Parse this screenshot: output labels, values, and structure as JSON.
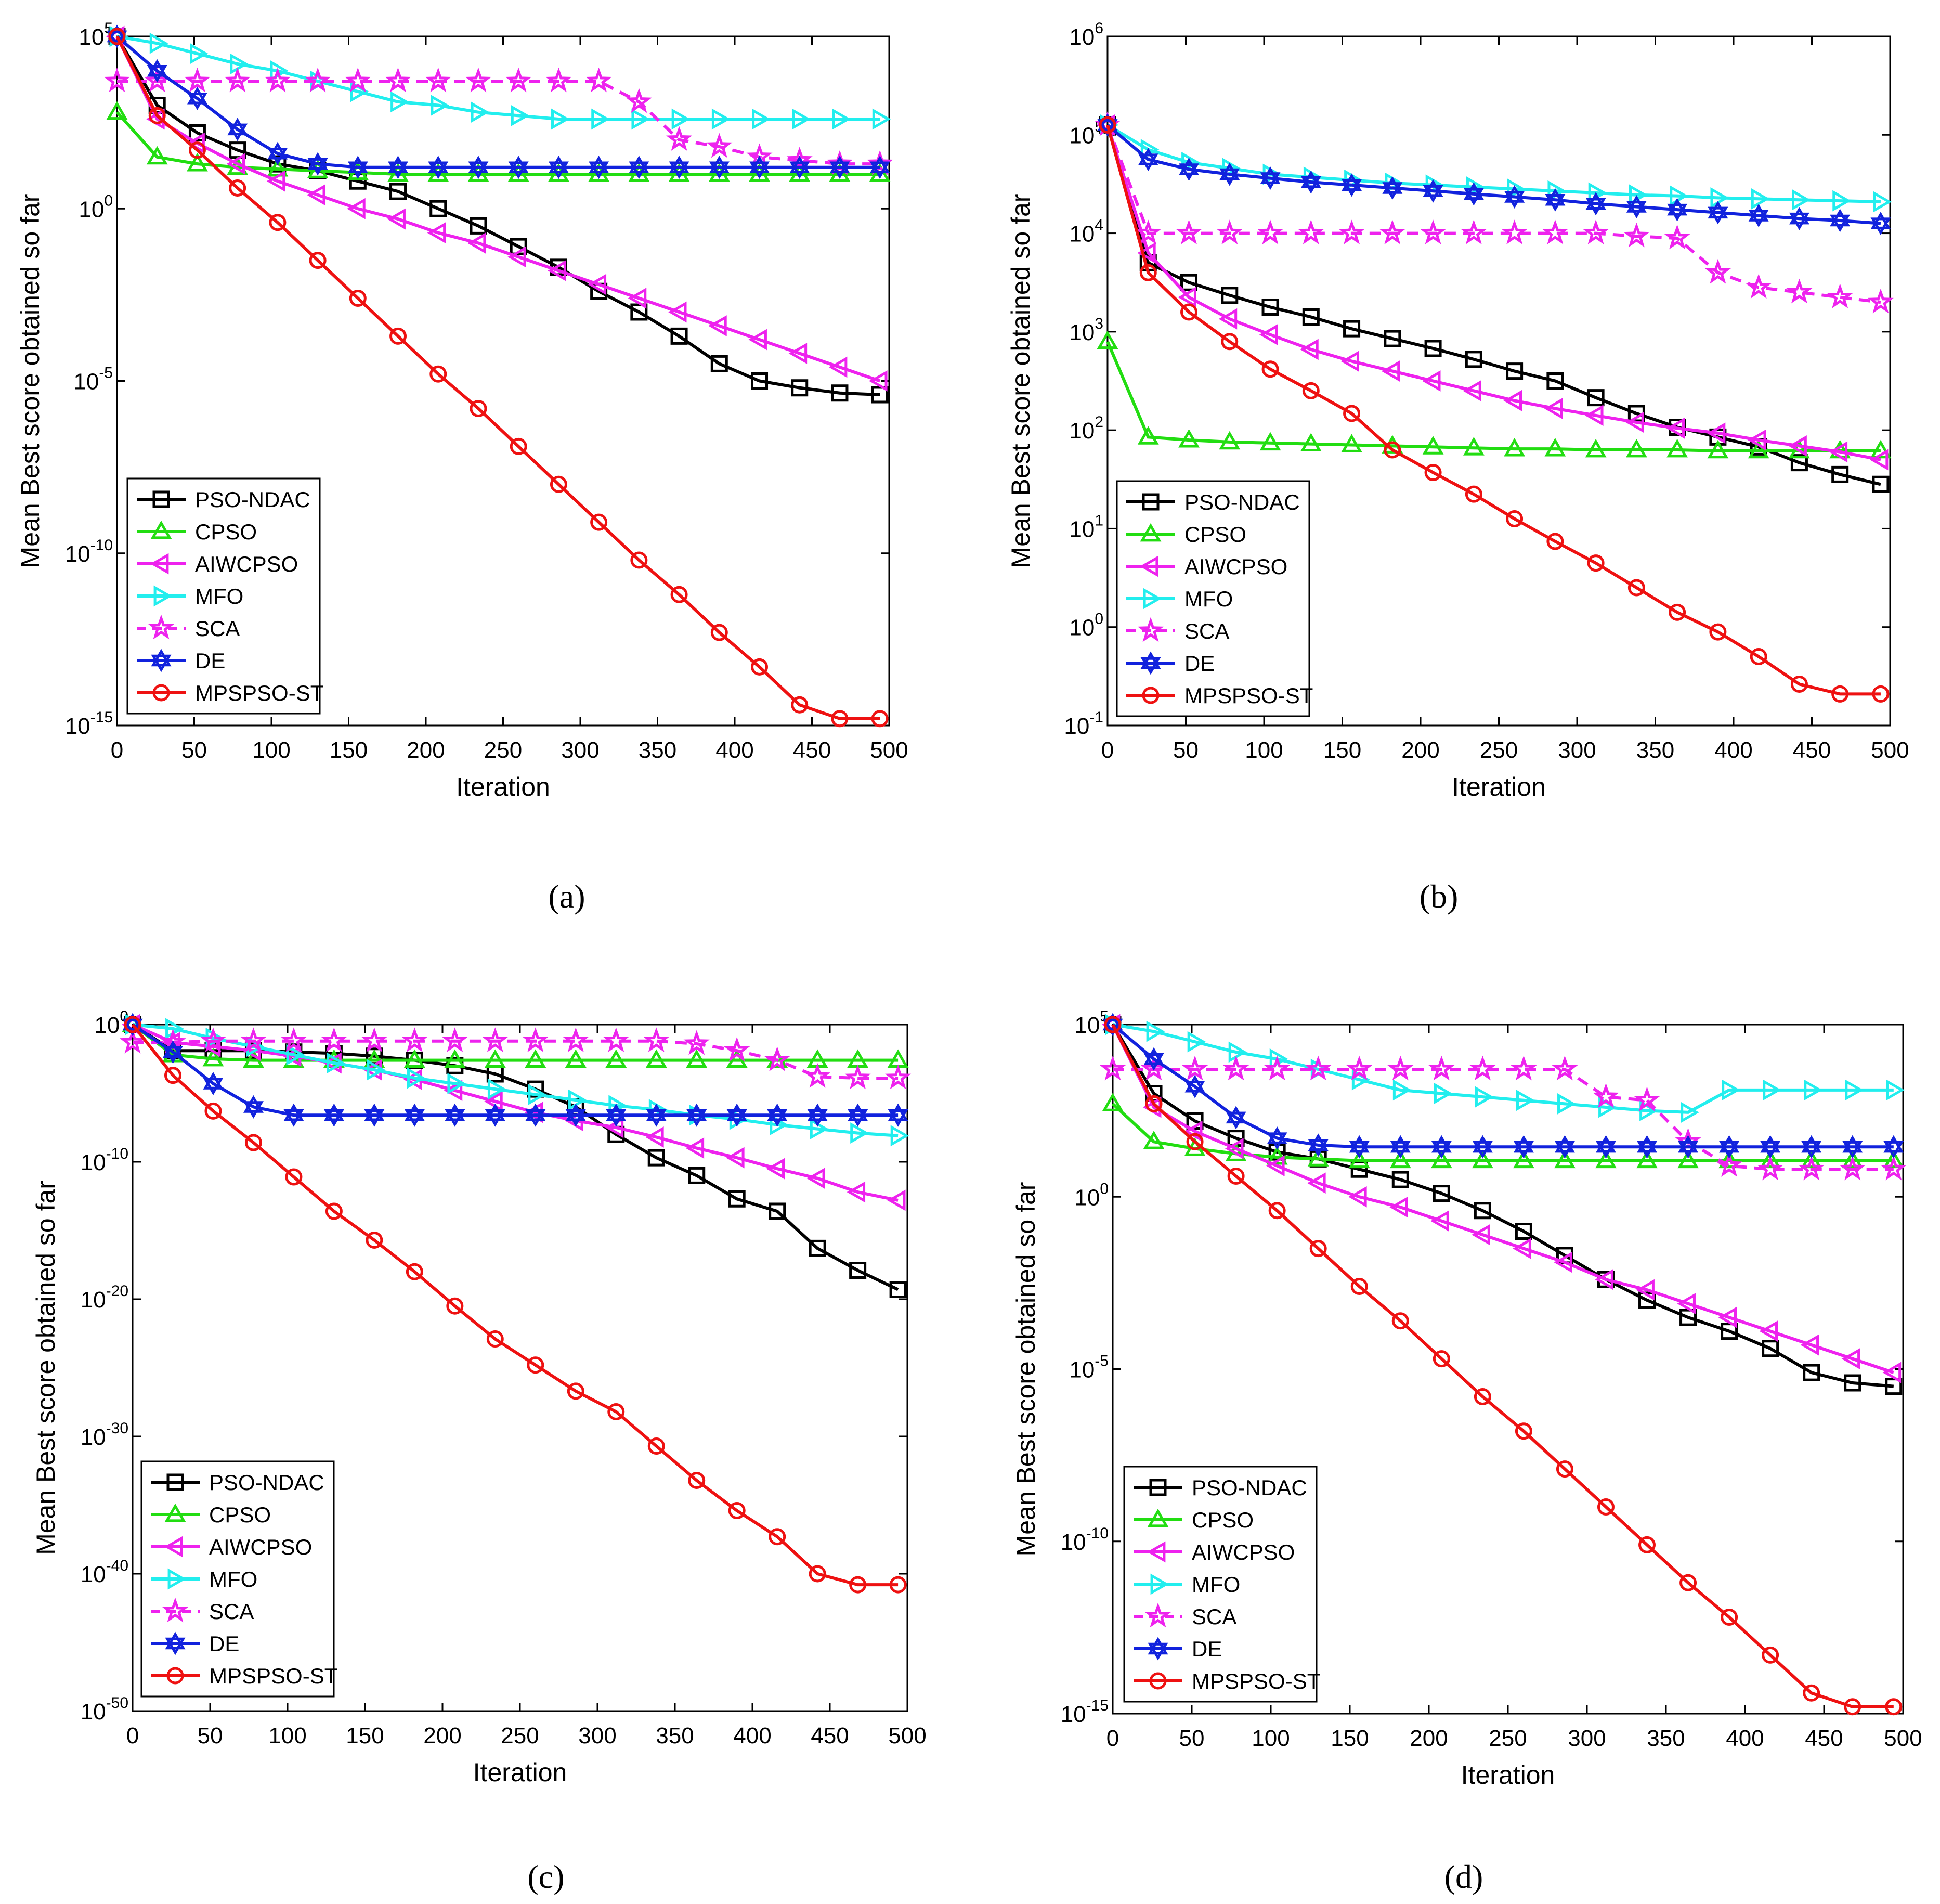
{
  "figure": {
    "panel_labels": [
      "(a)",
      "(b)",
      "(c)",
      "(d)"
    ]
  },
  "colors": {
    "PSO-NDAC": "#000000",
    "CPSO": "#22dd11",
    "AIWCPSO": "#ee22ee",
    "MFO": "#22eeee",
    "SCA": "#ee22ee",
    "DE": "#1122dd",
    "MPSPSO-ST": "#ee1111"
  },
  "chart_data": [
    {
      "type": "line",
      "panel": "(a)",
      "xlabel": "Iteration",
      "ylabel": "Mean Best score obtained so far",
      "xlim": [
        0,
        500
      ],
      "xticks": [
        0,
        50,
        100,
        150,
        200,
        250,
        300,
        350,
        400,
        450,
        500
      ],
      "ylim_exp": [
        -15,
        5
      ],
      "yticks_exp": [
        5,
        0,
        -5,
        -10,
        -15
      ],
      "legend_position": "bottom-left",
      "x": [
        0,
        26,
        52,
        78,
        104,
        130,
        156,
        182,
        208,
        234,
        260,
        286,
        312,
        338,
        364,
        390,
        416,
        442,
        468,
        494
      ],
      "series": [
        {
          "name": "PSO-NDAC",
          "marker": "square",
          "dash": false,
          "log10_values": [
            5.0,
            3.0,
            2.2,
            1.7,
            1.3,
            1.1,
            0.8,
            0.5,
            0.0,
            -0.5,
            -1.1,
            -1.7,
            -2.4,
            -3.0,
            -3.7,
            -4.5,
            -5.0,
            -5.2,
            -5.35,
            -5.4
          ]
        },
        {
          "name": "CPSO",
          "marker": "triangle-up",
          "dash": false,
          "log10_values": [
            2.8,
            1.5,
            1.3,
            1.2,
            1.15,
            1.1,
            1.05,
            1.0,
            1.0,
            1.0,
            1.0,
            1.0,
            1.0,
            1.0,
            1.0,
            1.0,
            1.0,
            1.0,
            1.0,
            1.0
          ]
        },
        {
          "name": "AIWCPSO",
          "marker": "triangle-left",
          "dash": false,
          "log10_values": [
            5.0,
            2.6,
            1.9,
            1.3,
            0.8,
            0.4,
            0.0,
            -0.3,
            -0.7,
            -1.0,
            -1.4,
            -1.8,
            -2.2,
            -2.6,
            -3.0,
            -3.4,
            -3.8,
            -4.2,
            -4.6,
            -5.0
          ]
        },
        {
          "name": "MFO",
          "marker": "triangle-right",
          "dash": false,
          "log10_values": [
            5.0,
            4.8,
            4.5,
            4.2,
            4.0,
            3.7,
            3.4,
            3.1,
            3.0,
            2.8,
            2.7,
            2.6,
            2.6,
            2.6,
            2.6,
            2.6,
            2.6,
            2.6,
            2.6,
            2.6
          ]
        },
        {
          "name": "SCA",
          "marker": "star",
          "dash": true,
          "log10_values": [
            3.7,
            3.7,
            3.7,
            3.7,
            3.7,
            3.7,
            3.7,
            3.7,
            3.7,
            3.7,
            3.7,
            3.7,
            3.7,
            3.1,
            2.0,
            1.8,
            1.5,
            1.4,
            1.3,
            1.3
          ]
        },
        {
          "name": "DE",
          "marker": "hexagram",
          "dash": false,
          "log10_values": [
            5.0,
            4.0,
            3.2,
            2.3,
            1.6,
            1.3,
            1.2,
            1.2,
            1.2,
            1.2,
            1.2,
            1.2,
            1.2,
            1.2,
            1.2,
            1.2,
            1.2,
            1.2,
            1.2,
            1.2
          ]
        },
        {
          "name": "MPSPSO-ST",
          "marker": "circle",
          "dash": false,
          "log10_values": [
            5.0,
            2.7,
            1.7,
            0.6,
            -0.4,
            -1.5,
            -2.6,
            -3.7,
            -4.8,
            -5.8,
            -6.9,
            -8.0,
            -9.1,
            -10.2,
            -11.2,
            -12.3,
            -13.3,
            -14.4,
            -14.8,
            -14.8
          ]
        }
      ]
    },
    {
      "type": "line",
      "panel": "(b)",
      "xlabel": "Iteration",
      "ylabel": "Mean Best score obtained so far",
      "xlim": [
        0,
        500
      ],
      "xticks": [
        0,
        50,
        100,
        150,
        200,
        250,
        300,
        350,
        400,
        450,
        500
      ],
      "ylim_exp": [
        -1,
        6
      ],
      "yticks_exp": [
        6,
        5,
        4,
        3,
        2,
        1,
        0,
        -1
      ],
      "legend_position": "bottom-left",
      "x": [
        0,
        26,
        52,
        78,
        104,
        130,
        156,
        182,
        208,
        234,
        260,
        286,
        312,
        338,
        364,
        390,
        416,
        442,
        468,
        494
      ],
      "series": [
        {
          "name": "PSO-NDAC",
          "marker": "square",
          "dash": false,
          "log10_values": [
            5.1,
            3.7,
            3.5,
            3.37,
            3.25,
            3.15,
            3.03,
            2.93,
            2.83,
            2.72,
            2.6,
            2.5,
            2.33,
            2.17,
            2.03,
            1.93,
            1.83,
            1.67,
            1.55,
            1.45
          ]
        },
        {
          "name": "CPSO",
          "marker": "triangle-up",
          "dash": false,
          "log10_values": [
            2.9,
            1.93,
            1.9,
            1.88,
            1.87,
            1.86,
            1.85,
            1.84,
            1.83,
            1.82,
            1.81,
            1.81,
            1.8,
            1.8,
            1.8,
            1.79,
            1.79,
            1.79,
            1.79,
            1.79
          ]
        },
        {
          "name": "AIWCPSO",
          "marker": "triangle-left",
          "dash": false,
          "log10_values": [
            5.1,
            3.8,
            3.35,
            3.13,
            2.97,
            2.82,
            2.7,
            2.6,
            2.5,
            2.4,
            2.3,
            2.22,
            2.15,
            2.08,
            2.02,
            1.97,
            1.9,
            1.84,
            1.78,
            1.7
          ]
        },
        {
          "name": "MFO",
          "marker": "triangle-right",
          "dash": false,
          "log10_values": [
            5.1,
            4.85,
            4.72,
            4.66,
            4.6,
            4.57,
            4.54,
            4.51,
            4.49,
            4.47,
            4.45,
            4.43,
            4.41,
            4.39,
            4.38,
            4.36,
            4.35,
            4.34,
            4.33,
            4.32
          ]
        },
        {
          "name": "SCA",
          "marker": "star",
          "dash": true,
          "log10_values": [
            5.1,
            4.0,
            4.0,
            4.0,
            4.0,
            4.0,
            4.0,
            4.0,
            4.0,
            4.0,
            4.0,
            4.0,
            4.0,
            3.97,
            3.95,
            3.6,
            3.45,
            3.4,
            3.35,
            3.3
          ]
        },
        {
          "name": "DE",
          "marker": "hexagram",
          "dash": false,
          "log10_values": [
            5.1,
            4.75,
            4.65,
            4.6,
            4.56,
            4.52,
            4.49,
            4.46,
            4.43,
            4.4,
            4.37,
            4.34,
            4.3,
            4.27,
            4.24,
            4.21,
            4.18,
            4.15,
            4.13,
            4.1
          ]
        },
        {
          "name": "MPSPSO-ST",
          "marker": "circle",
          "dash": false,
          "log10_values": [
            5.1,
            3.6,
            3.2,
            2.9,
            2.62,
            2.4,
            2.17,
            1.8,
            1.57,
            1.35,
            1.1,
            0.87,
            0.65,
            0.4,
            0.15,
            -0.05,
            -0.3,
            -0.58,
            -0.68,
            -0.68
          ]
        }
      ]
    },
    {
      "type": "line",
      "panel": "(c)",
      "xlabel": "Iteration",
      "ylabel": "Mean Best score obtained so far",
      "xlim": [
        0,
        500
      ],
      "xticks": [
        0,
        50,
        100,
        150,
        200,
        250,
        300,
        350,
        400,
        450,
        500
      ],
      "ylim_exp": [
        -50,
        0
      ],
      "yticks_exp": [
        0,
        -10,
        -20,
        -30,
        -40,
        -50
      ],
      "legend_position": "bottom-left",
      "x": [
        0,
        26,
        52,
        78,
        104,
        130,
        156,
        182,
        208,
        234,
        260,
        286,
        312,
        338,
        364,
        390,
        416,
        442,
        468,
        494
      ],
      "series": [
        {
          "name": "PSO-NDAC",
          "marker": "square",
          "dash": false,
          "log10_values": [
            0.0,
            -1.9,
            -1.9,
            -1.9,
            -2.0,
            -2.1,
            -2.3,
            -2.6,
            -3.0,
            -3.6,
            -4.7,
            -6.0,
            -8.0,
            -9.7,
            -11.0,
            -12.7,
            -13.6,
            -16.3,
            -17.9,
            -19.3
          ]
        },
        {
          "name": "CPSO",
          "marker": "triangle-up",
          "dash": false,
          "log10_values": [
            0.0,
            -2.2,
            -2.5,
            -2.6,
            -2.6,
            -2.6,
            -2.6,
            -2.6,
            -2.6,
            -2.6,
            -2.6,
            -2.6,
            -2.6,
            -2.6,
            -2.6,
            -2.6,
            -2.6,
            -2.6,
            -2.6,
            -2.6
          ]
        },
        {
          "name": "AIWCPSO",
          "marker": "triangle-left",
          "dash": false,
          "log10_values": [
            0.0,
            -1.3,
            -1.6,
            -1.9,
            -2.3,
            -2.8,
            -3.3,
            -4.0,
            -4.8,
            -5.6,
            -6.4,
            -7.0,
            -7.5,
            -8.2,
            -9.0,
            -9.7,
            -10.5,
            -11.2,
            -12.2,
            -12.8
          ]
        },
        {
          "name": "MFO",
          "marker": "triangle-right",
          "dash": false,
          "log10_values": [
            0.0,
            -0.3,
            -1.0,
            -1.6,
            -2.2,
            -2.8,
            -3.3,
            -3.9,
            -4.3,
            -4.7,
            -5.1,
            -5.5,
            -5.9,
            -6.2,
            -6.6,
            -6.9,
            -7.3,
            -7.6,
            -7.9,
            -8.1
          ]
        },
        {
          "name": "SCA",
          "marker": "star",
          "dash": true,
          "log10_values": [
            -1.3,
            -1.3,
            -1.2,
            -1.2,
            -1.2,
            -1.2,
            -1.2,
            -1.2,
            -1.2,
            -1.2,
            -1.2,
            -1.2,
            -1.2,
            -1.2,
            -1.4,
            -1.9,
            -2.6,
            -3.8,
            -3.9,
            -3.9
          ]
        },
        {
          "name": "DE",
          "marker": "hexagram",
          "dash": false,
          "log10_values": [
            0.0,
            -2.0,
            -4.3,
            -6.0,
            -6.6,
            -6.6,
            -6.6,
            -6.6,
            -6.6,
            -6.6,
            -6.6,
            -6.6,
            -6.6,
            -6.6,
            -6.6,
            -6.6,
            -6.6,
            -6.6,
            -6.6,
            -6.6
          ]
        },
        {
          "name": "MPSPSO-ST",
          "marker": "circle",
          "dash": false,
          "log10_values": [
            0.0,
            -3.7,
            -6.3,
            -8.6,
            -11.1,
            -13.6,
            -15.7,
            -18.0,
            -20.5,
            -22.9,
            -24.8,
            -26.7,
            -28.2,
            -30.7,
            -33.2,
            -35.4,
            -37.3,
            -40.0,
            -40.8,
            -40.8
          ]
        }
      ]
    },
    {
      "type": "line",
      "panel": "(d)",
      "xlabel": "Iteration",
      "ylabel": "Mean Best score obtained so far",
      "xlim": [
        0,
        500
      ],
      "xticks": [
        0,
        50,
        100,
        150,
        200,
        250,
        300,
        350,
        400,
        450,
        500
      ],
      "ylim_exp": [
        -15,
        5
      ],
      "yticks_exp": [
        5,
        0,
        -5,
        -10,
        -15
      ],
      "legend_position": "bottom-left",
      "x": [
        0,
        26,
        52,
        78,
        104,
        130,
        156,
        182,
        208,
        234,
        260,
        286,
        312,
        338,
        364,
        390,
        416,
        442,
        468,
        494
      ],
      "series": [
        {
          "name": "PSO-NDAC",
          "marker": "square",
          "dash": false,
          "log10_values": [
            5.0,
            3.0,
            2.2,
            1.7,
            1.3,
            1.1,
            0.8,
            0.5,
            0.1,
            -0.4,
            -1.0,
            -1.7,
            -2.4,
            -3.0,
            -3.5,
            -3.9,
            -4.4,
            -5.1,
            -5.4,
            -5.5
          ]
        },
        {
          "name": "CPSO",
          "marker": "triangle-up",
          "dash": false,
          "log10_values": [
            2.7,
            1.6,
            1.4,
            1.25,
            1.15,
            1.1,
            1.05,
            1.05,
            1.05,
            1.05,
            1.05,
            1.05,
            1.05,
            1.05,
            1.05,
            1.05,
            1.05,
            1.05,
            1.05,
            1.05
          ]
        },
        {
          "name": "AIWCPSO",
          "marker": "triangle-left",
          "dash": false,
          "log10_values": [
            5.0,
            2.6,
            1.9,
            1.4,
            0.9,
            0.4,
            0.0,
            -0.3,
            -0.7,
            -1.1,
            -1.5,
            -1.9,
            -2.4,
            -2.7,
            -3.1,
            -3.5,
            -3.9,
            -4.3,
            -4.7,
            -5.1
          ]
        },
        {
          "name": "MFO",
          "marker": "triangle-right",
          "dash": false,
          "log10_values": [
            5.0,
            4.8,
            4.5,
            4.2,
            4.0,
            3.7,
            3.4,
            3.1,
            3.0,
            2.9,
            2.8,
            2.7,
            2.6,
            2.5,
            2.45,
            3.1,
            3.1,
            3.1,
            3.1,
            3.1
          ]
        },
        {
          "name": "SCA",
          "marker": "star",
          "dash": true,
          "log10_values": [
            3.7,
            3.7,
            3.7,
            3.7,
            3.7,
            3.7,
            3.7,
            3.7,
            3.7,
            3.7,
            3.7,
            3.7,
            2.9,
            2.8,
            1.6,
            0.9,
            0.8,
            0.8,
            0.8,
            0.8
          ]
        },
        {
          "name": "DE",
          "marker": "hexagram",
          "dash": false,
          "log10_values": [
            5.0,
            4.0,
            3.2,
            2.3,
            1.7,
            1.5,
            1.45,
            1.45,
            1.45,
            1.45,
            1.45,
            1.45,
            1.45,
            1.45,
            1.45,
            1.45,
            1.45,
            1.45,
            1.45,
            1.45
          ]
        },
        {
          "name": "MPSPSO-ST",
          "marker": "circle",
          "dash": false,
          "log10_values": [
            5.0,
            2.7,
            1.6,
            0.6,
            -0.4,
            -1.5,
            -2.6,
            -3.6,
            -4.7,
            -5.8,
            -6.8,
            -7.9,
            -9.0,
            -10.1,
            -11.2,
            -12.2,
            -13.3,
            -14.4,
            -14.8,
            -14.8
          ]
        }
      ]
    }
  ]
}
